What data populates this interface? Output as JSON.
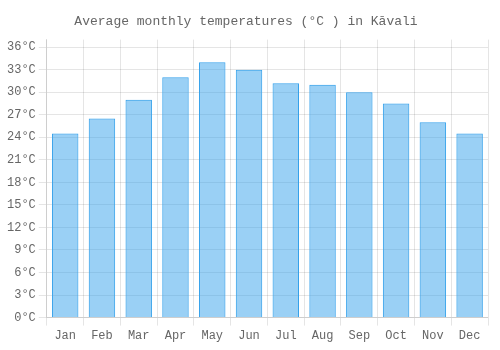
{
  "chart_data": {
    "type": "bar",
    "title": "Average monthly temperatures (°C ) in Kāvali",
    "categories": [
      "Jan",
      "Feb",
      "Mar",
      "Apr",
      "May",
      "Jun",
      "Jul",
      "Aug",
      "Sep",
      "Oct",
      "Nov",
      "Dec"
    ],
    "values": [
      24.5,
      26.5,
      29.0,
      32.0,
      34.0,
      33.0,
      31.2,
      31.0,
      30.0,
      28.5,
      26.0,
      24.5
    ],
    "ylim": [
      0,
      37
    ],
    "yticks": [
      {
        "value": 0,
        "label": "0°C"
      },
      {
        "value": 3,
        "label": "3°C"
      },
      {
        "value": 6,
        "label": "6°C"
      },
      {
        "value": 9,
        "label": "9°C"
      },
      {
        "value": 12,
        "label": "12°C"
      },
      {
        "value": 15,
        "label": "15°C"
      },
      {
        "value": 18,
        "label": "18°C"
      },
      {
        "value": 21,
        "label": "21°C"
      },
      {
        "value": 24,
        "label": "24°C"
      },
      {
        "value": 27,
        "label": "27°C"
      },
      {
        "value": 30,
        "label": "30°C"
      },
      {
        "value": 33,
        "label": "33°C"
      },
      {
        "value": 36,
        "label": "36°C"
      }
    ],
    "grid": true
  }
}
